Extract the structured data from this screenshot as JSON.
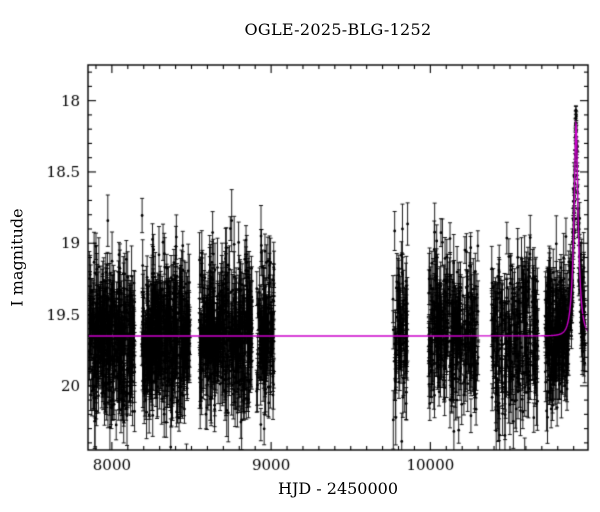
{
  "chart_data": {
    "type": "scatter",
    "title": "OGLE-2025-BLG-1252",
    "xlabel": "HJD - 2450000",
    "ylabel": "I magnitude",
    "xlim": [
      7850,
      10990
    ],
    "ylim": [
      17.75,
      20.45
    ],
    "y_axis_inverted": true,
    "grid": false,
    "xticks": [
      8000,
      9000,
      10000
    ],
    "x_minor_step": 100,
    "yticks": [
      18,
      18.5,
      19,
      19.5,
      20
    ],
    "y_minor_step": 0.1,
    "point_color": "#000000",
    "model_color": "#cc00cc",
    "baseline_mag": 19.65,
    "model": {
      "type": "microlensing-point-lens",
      "t0": 10915,
      "tE": 30,
      "u0": 0.26,
      "peak_mag": 18.16
    },
    "seasons": [
      {
        "x_start": 7855,
        "x_end": 8145,
        "n": 430,
        "scatter_sigma": 0.26,
        "median_err": 0.15
      },
      {
        "x_start": 8185,
        "x_end": 8490,
        "n": 470,
        "scatter_sigma": 0.26,
        "median_err": 0.15
      },
      {
        "x_start": 8550,
        "x_end": 8880,
        "n": 470,
        "scatter_sigma": 0.26,
        "median_err": 0.15
      },
      {
        "x_start": 8905,
        "x_end": 9020,
        "n": 140,
        "scatter_sigma": 0.26,
        "median_err": 0.15
      },
      {
        "x_start": 9765,
        "x_end": 9860,
        "n": 90,
        "scatter_sigma": 0.26,
        "median_err": 0.15
      },
      {
        "x_start": 9990,
        "x_end": 10300,
        "n": 330,
        "scatter_sigma": 0.26,
        "median_err": 0.15
      },
      {
        "x_start": 10385,
        "x_end": 10675,
        "n": 300,
        "scatter_sigma": 0.26,
        "median_err": 0.15
      },
      {
        "x_start": 10720,
        "x_end": 10970,
        "n": 380,
        "scatter_sigma": 0.24,
        "median_err": 0.14
      }
    ]
  }
}
